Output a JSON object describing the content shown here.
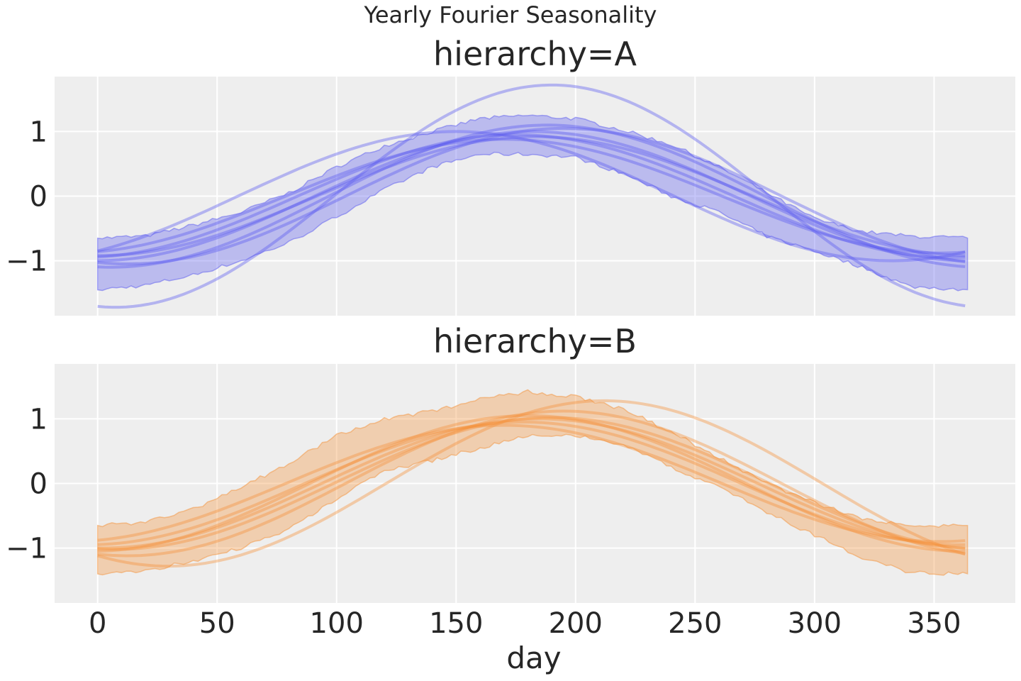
{
  "figure": {
    "suptitle": "Yearly Fourier Seasonality"
  },
  "colors": {
    "panel_bg": "#eeeeee",
    "grid": "#ffffff",
    "text": "#262626",
    "series_A": "#5b5bef",
    "series_B": "#f4913a"
  },
  "chart_data": [
    {
      "type": "line",
      "title": "hierarchy=A",
      "xlabel": "",
      "ylabel": "",
      "xlim": [
        -18,
        384
      ],
      "ylim": [
        -1.85,
        1.85
      ],
      "xticks": [
        0,
        50,
        100,
        150,
        200,
        250,
        300,
        350
      ],
      "yticks": [
        -1,
        0,
        1
      ],
      "ytick_labels": [
        "−1",
        "0",
        "1"
      ],
      "show_xtick_labels": false,
      "grid": true,
      "color": "#5b5bef",
      "band": {
        "x": [
          0,
          20,
          40,
          60,
          80,
          100,
          120,
          140,
          160,
          180,
          200,
          220,
          240,
          260,
          280,
          300,
          320,
          340,
          365
        ],
        "lower": [
          -1.45,
          -1.38,
          -1.22,
          -1.0,
          -0.72,
          -0.32,
          0.1,
          0.45,
          0.65,
          0.65,
          0.6,
          0.35,
          0.0,
          -0.25,
          -0.62,
          -0.85,
          -1.1,
          -1.4,
          -1.45
        ],
        "upper": [
          -0.65,
          -0.62,
          -0.45,
          -0.25,
          0.05,
          0.45,
          0.78,
          1.0,
          1.2,
          1.25,
          1.2,
          1.02,
          0.8,
          0.45,
          0.05,
          -0.35,
          -0.55,
          -0.62,
          -0.65
        ]
      },
      "curves": [
        {
          "amp": 1.72,
          "peak_day": 190
        },
        {
          "amp": 1.0,
          "peak_day": 182
        },
        {
          "amp": 0.95,
          "peak_day": 175
        },
        {
          "amp": 1.1,
          "peak_day": 188
        },
        {
          "amp": 0.88,
          "peak_day": 170
        },
        {
          "amp": 1.05,
          "peak_day": 195
        },
        {
          "amp": 0.92,
          "peak_day": 183
        },
        {
          "amp": 1.0,
          "peak_day": 150
        }
      ]
    },
    {
      "type": "line",
      "title": "hierarchy=B",
      "xlabel": "day",
      "ylabel": "",
      "xlim": [
        -18,
        384
      ],
      "ylim": [
        -1.85,
        1.85
      ],
      "xticks": [
        0,
        50,
        100,
        150,
        200,
        250,
        300,
        350
      ],
      "yticks": [
        -1,
        0,
        1
      ],
      "ytick_labels": [
        "−1",
        "0",
        "1"
      ],
      "show_xtick_labels": true,
      "grid": true,
      "color": "#f4913a",
      "band": {
        "x": [
          0,
          20,
          40,
          60,
          80,
          100,
          120,
          140,
          160,
          180,
          200,
          220,
          240,
          260,
          280,
          300,
          320,
          340,
          365
        ],
        "lower": [
          -1.4,
          -1.35,
          -1.2,
          -1.0,
          -0.7,
          -0.25,
          0.2,
          0.35,
          0.55,
          0.75,
          0.75,
          0.6,
          0.25,
          -0.05,
          -0.45,
          -0.8,
          -1.15,
          -1.38,
          -1.4
        ],
        "upper": [
          -0.65,
          -0.6,
          -0.4,
          -0.05,
          0.3,
          0.75,
          1.0,
          1.12,
          1.3,
          1.42,
          1.35,
          1.15,
          0.8,
          0.4,
          0.0,
          -0.3,
          -0.55,
          -0.65,
          -0.65
        ]
      },
      "curves": [
        {
          "amp": 1.28,
          "peak_day": 212
        },
        {
          "amp": 1.05,
          "peak_day": 180
        },
        {
          "amp": 1.0,
          "peak_day": 185
        },
        {
          "amp": 0.95,
          "peak_day": 178
        },
        {
          "amp": 1.12,
          "peak_day": 195
        },
        {
          "amp": 0.9,
          "peak_day": 170
        },
        {
          "amp": 1.02,
          "peak_day": 190
        }
      ]
    }
  ]
}
